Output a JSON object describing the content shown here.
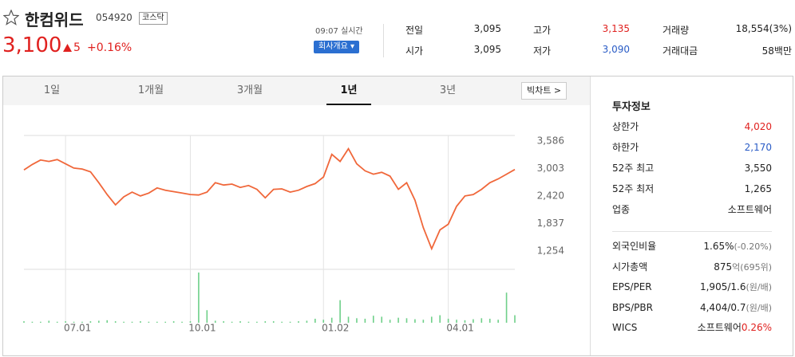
{
  "header": {
    "name": "한컴위드",
    "code": "054920",
    "market": "코스닥",
    "price": "3,100",
    "change": "5",
    "change_rate": "+0.16%",
    "time": "09:07 실시간",
    "company_button": "회사개요"
  },
  "quote": {
    "rows": [
      [
        {
          "label": "전일",
          "value": "3,095"
        },
        {
          "label": "고가",
          "value": "3,135"
        },
        {
          "label": "거래량",
          "value": "18,554(3%)"
        }
      ],
      [
        {
          "label": "시가",
          "value": "3,095"
        },
        {
          "label": "저가",
          "value": "3,090"
        },
        {
          "label": "거래대금",
          "value": "58백만"
        }
      ]
    ]
  },
  "tabs": [
    "1일",
    "1개월",
    "3개월",
    "1년",
    "3년"
  ],
  "active_tab": 3,
  "big_chart": "빅차트",
  "chart_data": {
    "type": "line",
    "color": "#f0673a",
    "values": [
      2970,
      3086,
      3180,
      3150,
      3190,
      3100,
      3010,
      2990,
      2930,
      2700,
      2450,
      2230,
      2400,
      2500,
      2420,
      2480,
      2590,
      2540,
      2510,
      2480,
      2450,
      2440,
      2500,
      2700,
      2650,
      2670,
      2600,
      2640,
      2560,
      2380,
      2560,
      2570,
      2500,
      2540,
      2620,
      2680,
      2820,
      3300,
      3150,
      3420,
      3100,
      2950,
      2880,
      2920,
      2840,
      2560,
      2700,
      2330,
      1750,
      1300,
      1700,
      1820,
      2200,
      2420,
      2450,
      2560,
      2700,
      2780,
      2880,
      2980
    ],
    "ylim": [
      1000,
      3700
    ],
    "yticks": [
      {
        "value": 3586,
        "label": "3,586"
      },
      {
        "value": 3003,
        "label": "3,003"
      },
      {
        "value": 2420,
        "label": "2,420"
      },
      {
        "value": 1837,
        "label": "1,837"
      },
      {
        "value": 1254,
        "label": "1,254"
      }
    ],
    "xticks": [
      {
        "value": 5,
        "label": "07.01"
      },
      {
        "value": 20,
        "label": "10.01"
      },
      {
        "value": 36,
        "label": "01.02"
      },
      {
        "value": 51,
        "label": "04.01"
      }
    ],
    "grid": "x",
    "volume": {
      "color": "#6fd08a",
      "ylim": [
        0,
        100
      ],
      "values": [
        3,
        2,
        2,
        4,
        2,
        3,
        2,
        2,
        3,
        4,
        5,
        3,
        2,
        2,
        3,
        2,
        2,
        2,
        3,
        2,
        3,
        100,
        25,
        4,
        3,
        2,
        3,
        2,
        2,
        3,
        3,
        2,
        2,
        3,
        4,
        8,
        6,
        10,
        45,
        12,
        9,
        8,
        14,
        12,
        6,
        10,
        9,
        7,
        6,
        12,
        15,
        8,
        6,
        5,
        7,
        9,
        8,
        6,
        60,
        15
      ]
    }
  },
  "invest": {
    "title": "투자정보",
    "rows": [
      {
        "label": "상한가",
        "value": "4,020"
      },
      {
        "label": "하한가",
        "value": "2,170"
      },
      {
        "label": "52주 최고",
        "value": "3,550"
      },
      {
        "label": "52주 최저",
        "value": "1,265"
      },
      {
        "label": "업종",
        "value": "소프트웨어"
      }
    ],
    "rows2": [
      {
        "label": "외국인비율",
        "value": "1.65%",
        "note": "(-0.20%)"
      },
      {
        "label": "시가총액",
        "value": "875",
        "note": "억(695위)"
      },
      {
        "label": "EPS/PER",
        "value": "1,905/1.6",
        "note": "(원/배)"
      },
      {
        "label": "BPS/PBR",
        "value": "4,404/0.7",
        "note": "(원/배)"
      },
      {
        "label": "WICS",
        "value": "소프트웨어",
        "note": "0.26%"
      }
    ]
  }
}
